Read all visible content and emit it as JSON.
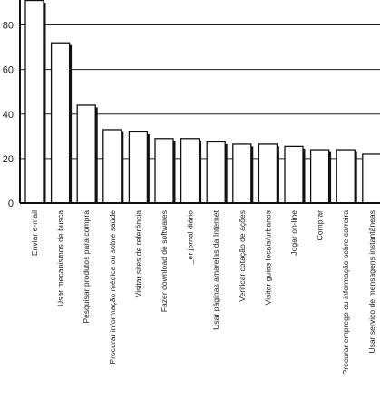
{
  "chart_data": {
    "type": "bar",
    "title": "",
    "xlabel": "",
    "ylabel": "",
    "ylim": [
      0,
      90
    ],
    "yticks": [
      0,
      20,
      40,
      60,
      80
    ],
    "grid": true,
    "categories": [
      "Enviar e-mail",
      "Usar mecanismos de busca",
      "Pesquisar produtos para compra",
      "Procurar informação médica ou sobre saúde",
      "Visitar sites de referência",
      "Fazer download de softwares",
      "_er jornal diário",
      "Usar páginas amarelas da Internet",
      "Verificar cotação de ações",
      "Visitar guias locais/urbanos",
      "Jogar on-line",
      "Comprar",
      "Procurar emprego ou informação sobre carreira",
      "Usar serviço de mensagens instantâneas"
    ],
    "values": [
      91,
      72,
      44,
      33,
      32,
      29,
      29,
      27.5,
      26.5,
      26.5,
      25.5,
      24,
      24,
      22
    ]
  }
}
